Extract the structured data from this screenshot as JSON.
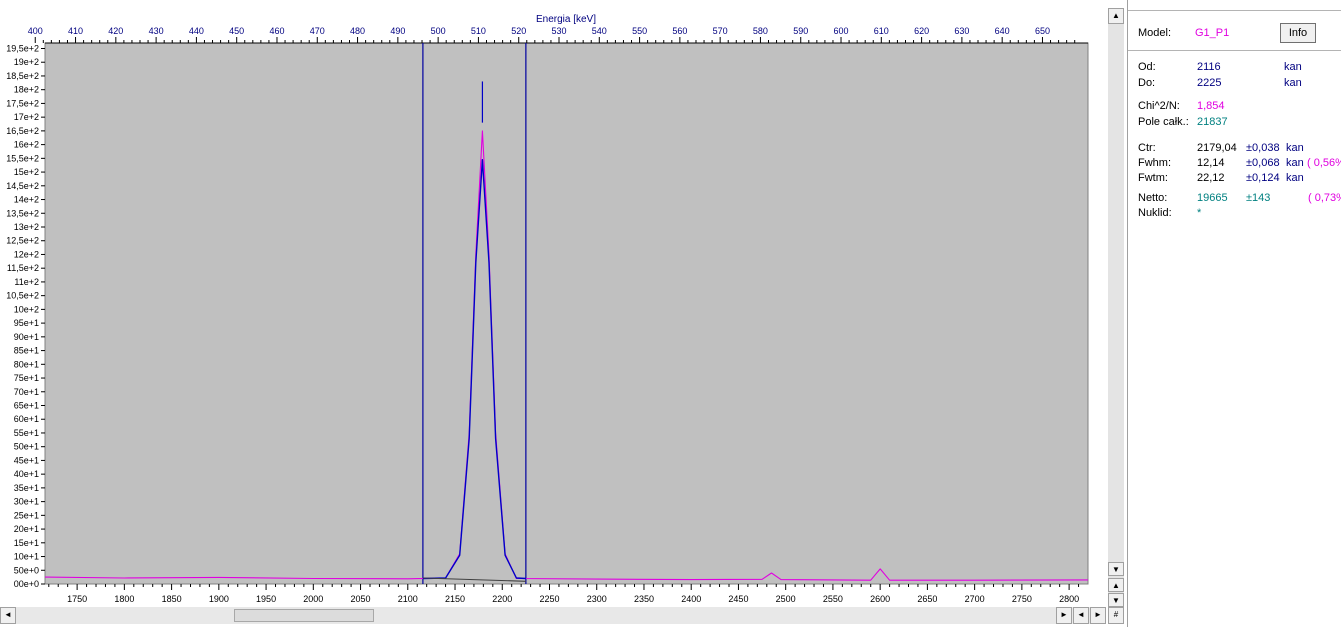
{
  "chart_data": {
    "type": "line",
    "top_axis": {
      "label": "Energia [keV]",
      "ticks": [
        "400",
        "410",
        "420",
        "430",
        "440",
        "450",
        "460",
        "470",
        "480",
        "490",
        "500",
        "510",
        "520",
        "530",
        "540",
        "550",
        "560",
        "570",
        "580",
        "590",
        "600",
        "610",
        "620",
        "630",
        "640",
        "650"
      ]
    },
    "x_axis": {
      "range": [
        1716,
        2820
      ],
      "ticks": [
        "1750",
        "1800",
        "1850",
        "1900",
        "1950",
        "2000",
        "2050",
        "2100",
        "2150",
        "2200",
        "2250",
        "2300",
        "2350",
        "2400",
        "2450",
        "2500",
        "2550",
        "2600",
        "2650",
        "2700",
        "2750",
        "2800"
      ]
    },
    "y_axis": {
      "range": [
        0,
        1970
      ],
      "ticks": [
        "00e+0",
        "50e+0",
        "10e+1",
        "15e+1",
        "20e+1",
        "25e+1",
        "30e+1",
        "35e+1",
        "40e+1",
        "45e+1",
        "50e+1",
        "55e+1",
        "60e+1",
        "65e+1",
        "70e+1",
        "75e+1",
        "80e+1",
        "85e+1",
        "90e+1",
        "95e+1",
        "10e+2",
        "10,5e+2",
        "11e+2",
        "11,5e+2",
        "12e+2",
        "12,5e+2",
        "13e+2",
        "13,5e+2",
        "14e+2",
        "14,5e+2",
        "15e+2",
        "15,5e+2",
        "16e+2",
        "16,5e+2",
        "17e+2",
        "17,5e+2",
        "18e+2",
        "18,5e+2",
        "19e+2",
        "19,5e+2"
      ]
    },
    "roi_lines": [
      2116,
      2225
    ],
    "centroid_marker": {
      "x": 2179,
      "y_range": [
        1680,
        1830
      ]
    },
    "series": [
      {
        "values": [
          [
            1716,
            25
          ],
          [
            1800,
            22
          ],
          [
            1900,
            24
          ],
          [
            2000,
            20
          ],
          [
            2100,
            19
          ],
          [
            2140,
            22
          ],
          [
            2155,
            110
          ],
          [
            2165,
            550
          ],
          [
            2172,
            1200
          ],
          [
            2179,
            1650
          ],
          [
            2186,
            1200
          ],
          [
            2193,
            550
          ],
          [
            2203,
            110
          ],
          [
            2215,
            20
          ],
          [
            2300,
            18
          ],
          [
            2400,
            16
          ],
          [
            2475,
            17
          ],
          [
            2485,
            40
          ],
          [
            2495,
            16
          ],
          [
            2590,
            14
          ],
          [
            2600,
            55
          ],
          [
            2610,
            14
          ],
          [
            2700,
            14
          ],
          [
            2820,
            15
          ]
        ],
        "color": "#e000e0"
      },
      {
        "values": [
          [
            2116,
            20
          ],
          [
            2140,
            22
          ],
          [
            2155,
            105
          ],
          [
            2165,
            530
          ],
          [
            2172,
            1170
          ],
          [
            2179,
            1545
          ],
          [
            2186,
            1170
          ],
          [
            2193,
            530
          ],
          [
            2203,
            105
          ],
          [
            2215,
            22
          ],
          [
            2225,
            20
          ]
        ],
        "color": "#0000c8"
      },
      {
        "values": [
          [
            2116,
            22
          ],
          [
            2225,
            10
          ]
        ],
        "color": "#404040"
      }
    ],
    "colors": {
      "plot_bg": "#c0c0c0",
      "axis_text": "#000080",
      "roi": "#0000a0",
      "fit": "#0000c8",
      "data": "#e000e0"
    }
  },
  "panel": {
    "model_label": "Model:",
    "model_value": "G1_P1",
    "info_button": "Info",
    "od_label": "Od:",
    "od_value": "2116",
    "od_unit": "kan",
    "do_label": "Do:",
    "do_value": "2225",
    "do_unit": "kan",
    "chi_label": "Chi^2/N:",
    "chi_value": "1,854",
    "pole_label": "Pole całk.:",
    "pole_value": "21837",
    "ctr_label": "Ctr:",
    "ctr_value": "2179,04",
    "ctr_err": "±0,038",
    "ctr_unit": "kan",
    "fwhm_label": "Fwhm:",
    "fwhm_value": "12,14",
    "fwhm_err": "±0,068",
    "fwhm_unit": "kan",
    "fwhm_pct": "( 0,56%",
    "fwtm_label": "Fwtm:",
    "fwtm_value": "22,12",
    "fwtm_err": "±0,124",
    "fwtm_unit": "kan",
    "netto_label": "Netto:",
    "netto_value": "19665",
    "netto_err": "±143",
    "netto_pct": "( 0,73%",
    "nuklid_label": "Nuklid:",
    "nuklid_value": "*"
  },
  "scrollbar": {
    "up_arrow": "▲",
    "down_arrow": "▼",
    "left_arrow": "◄",
    "right_arrow": "►",
    "grid_glyph": "#"
  }
}
